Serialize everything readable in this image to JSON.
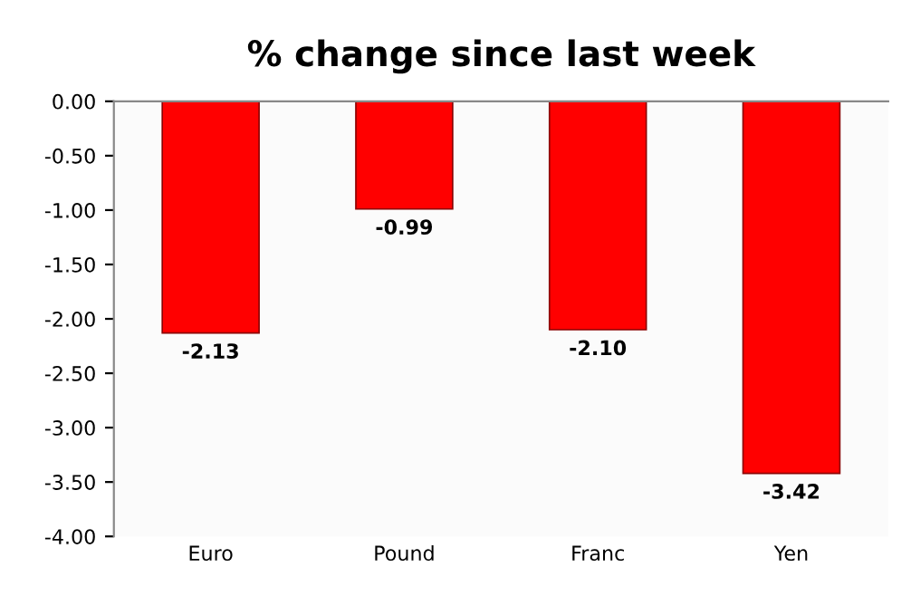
{
  "chart_data": {
    "type": "bar",
    "title": "% change since last week",
    "categories": [
      "Euro",
      "Pound",
      "Franc",
      "Yen"
    ],
    "values": [
      -2.13,
      -0.99,
      -2.1,
      -3.42
    ],
    "value_labels": [
      "-2.13",
      "-0.99",
      "-2.10",
      "-3.42"
    ],
    "color": "#ff0000",
    "ylim": [
      -4,
      0
    ],
    "yticks": [
      {
        "value": 0,
        "label": "0.00"
      },
      {
        "value": -0.5,
        "label": "-0.50"
      },
      {
        "value": -1,
        "label": "-1.00"
      },
      {
        "value": -1.5,
        "label": "-1.50"
      },
      {
        "value": -2,
        "label": "-2.00"
      },
      {
        "value": -2.5,
        "label": "-2.50"
      },
      {
        "value": -3,
        "label": "-3.00"
      },
      {
        "value": -3.5,
        "label": "-3.50"
      },
      {
        "value": -4,
        "label": "-4.00"
      }
    ],
    "grid": false,
    "legend": false
  }
}
